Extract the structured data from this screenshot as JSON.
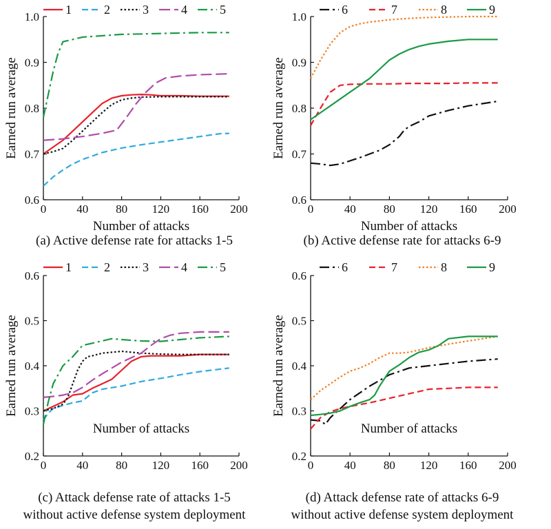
{
  "chart_data": [
    {
      "type": "line",
      "panel": "a",
      "caption": [
        "(a) Active defense rate for attacks 1-5"
      ],
      "xlabel": "Number of attacks",
      "ylabel": "Earned run average",
      "xlim": [
        0,
        200
      ],
      "ylim": [
        0.6,
        1.0
      ],
      "xticks": [
        0,
        40,
        80,
        120,
        160,
        200
      ],
      "yticks": [
        0.6,
        0.7,
        0.8,
        0.9,
        1.0
      ],
      "ytick_labels": [
        "0.6",
        "0.7",
        "0.8",
        "0.9",
        "1.0"
      ],
      "legend_position": "top",
      "series": [
        {
          "name": "1",
          "color": "#e8202a",
          "dash": "solid",
          "x": [
            0,
            10,
            20,
            30,
            40,
            50,
            60,
            70,
            80,
            90,
            100,
            110,
            120,
            140,
            160,
            190
          ],
          "y": [
            0.7,
            0.715,
            0.73,
            0.75,
            0.77,
            0.79,
            0.81,
            0.822,
            0.827,
            0.829,
            0.83,
            0.829,
            0.827,
            0.827,
            0.826,
            0.826
          ]
        },
        {
          "name": "2",
          "color": "#2fa9e0",
          "dash": "dash",
          "x": [
            0,
            10,
            20,
            30,
            40,
            60,
            80,
            100,
            120,
            140,
            160,
            180,
            190
          ],
          "y": [
            0.63,
            0.65,
            0.665,
            0.678,
            0.688,
            0.703,
            0.713,
            0.72,
            0.726,
            0.732,
            0.738,
            0.744,
            0.745
          ]
        },
        {
          "name": "3",
          "color": "#111111",
          "dash": "dot",
          "x": [
            0,
            10,
            20,
            30,
            40,
            50,
            60,
            70,
            80,
            90,
            100,
            120,
            140,
            160,
            190
          ],
          "y": [
            0.7,
            0.705,
            0.712,
            0.73,
            0.75,
            0.77,
            0.79,
            0.808,
            0.818,
            0.822,
            0.824,
            0.825,
            0.825,
            0.825,
            0.825
          ]
        },
        {
          "name": "4",
          "color": "#b04ca8",
          "dash": "longdash",
          "x": [
            0,
            20,
            40,
            60,
            75,
            85,
            95,
            105,
            115,
            125,
            140,
            160,
            190
          ],
          "y": [
            0.73,
            0.733,
            0.738,
            0.745,
            0.752,
            0.78,
            0.81,
            0.835,
            0.855,
            0.866,
            0.87,
            0.873,
            0.875
          ]
        },
        {
          "name": "5",
          "color": "#1a9a46",
          "dash": "dashdot",
          "x": [
            0,
            5,
            10,
            15,
            20,
            30,
            40,
            60,
            80,
            100,
            120,
            140,
            160,
            190
          ],
          "y": [
            0.78,
            0.83,
            0.88,
            0.92,
            0.945,
            0.95,
            0.955,
            0.958,
            0.961,
            0.962,
            0.963,
            0.964,
            0.965,
            0.965
          ]
        }
      ]
    },
    {
      "type": "line",
      "panel": "b",
      "caption": [
        "(b) Active defense rate for attacks 6-9"
      ],
      "xlabel": "Number of attacks",
      "ylabel": "Earned run average",
      "xlim": [
        0,
        200
      ],
      "ylim": [
        0.6,
        1.0
      ],
      "xticks": [
        0,
        40,
        80,
        120,
        160,
        200
      ],
      "yticks": [
        0.6,
        0.7,
        0.8,
        0.9,
        1.0
      ],
      "ytick_labels": [
        "0.6",
        "0.7",
        "0.8",
        "0.9",
        "1.0"
      ],
      "legend_position": "top",
      "series": [
        {
          "name": "6",
          "color": "#111111",
          "dash": "dashdot",
          "x": [
            0,
            10,
            20,
            30,
            40,
            50,
            60,
            70,
            80,
            90,
            95,
            100,
            110,
            120,
            140,
            160,
            190
          ],
          "y": [
            0.68,
            0.678,
            0.675,
            0.678,
            0.685,
            0.692,
            0.7,
            0.708,
            0.72,
            0.738,
            0.752,
            0.76,
            0.77,
            0.783,
            0.795,
            0.805,
            0.815
          ]
        },
        {
          "name": "7",
          "color": "#e8202a",
          "dash": "dash",
          "x": [
            0,
            10,
            20,
            30,
            40,
            60,
            80,
            100,
            120,
            140,
            160,
            190
          ],
          "y": [
            0.762,
            0.8,
            0.835,
            0.85,
            0.852,
            0.853,
            0.853,
            0.854,
            0.854,
            0.854,
            0.855,
            0.855
          ]
        },
        {
          "name": "8",
          "color": "#f07f1e",
          "dash": "dot",
          "x": [
            0,
            10,
            20,
            30,
            40,
            50,
            60,
            80,
            100,
            120,
            140,
            160,
            190
          ],
          "y": [
            0.865,
            0.905,
            0.94,
            0.965,
            0.978,
            0.984,
            0.988,
            0.993,
            0.996,
            0.998,
            0.999,
            1.0,
            1.0
          ]
        },
        {
          "name": "9",
          "color": "#1a9a46",
          "dash": "solid",
          "x": [
            0,
            10,
            20,
            30,
            40,
            50,
            60,
            70,
            80,
            90,
            100,
            110,
            120,
            130,
            140,
            160,
            190
          ],
          "y": [
            0.775,
            0.79,
            0.805,
            0.82,
            0.835,
            0.85,
            0.865,
            0.885,
            0.905,
            0.918,
            0.928,
            0.935,
            0.94,
            0.943,
            0.946,
            0.95,
            0.95
          ]
        }
      ]
    },
    {
      "type": "line",
      "panel": "c",
      "caption": [
        "(c) Attack defense rate of attacks 1-5",
        "without active defense system deployment"
      ],
      "xlabel": "Number of attacks",
      "ylabel": "Earned run average",
      "xlim": [
        0,
        200
      ],
      "ylim": [
        0.2,
        0.6
      ],
      "xticks": [
        0,
        40,
        80,
        120,
        160,
        200
      ],
      "yticks": [
        0.2,
        0.3,
        0.4,
        0.5,
        0.6
      ],
      "ytick_labels": [
        "0.2",
        "0.3",
        "0.4",
        "0.5",
        "0.6"
      ],
      "legend_position": "top",
      "series": [
        {
          "name": "1",
          "color": "#e8202a",
          "dash": "solid",
          "x": [
            0,
            10,
            20,
            30,
            40,
            50,
            60,
            70,
            80,
            90,
            100,
            110,
            120,
            140,
            160,
            190
          ],
          "y": [
            0.3,
            0.31,
            0.32,
            0.335,
            0.338,
            0.35,
            0.36,
            0.37,
            0.39,
            0.41,
            0.42,
            0.422,
            0.422,
            0.422,
            0.425,
            0.425
          ]
        },
        {
          "name": "2",
          "color": "#2fa9e0",
          "dash": "dash",
          "x": [
            0,
            5,
            10,
            20,
            30,
            40,
            50,
            60,
            80,
            100,
            120,
            140,
            160,
            190
          ],
          "y": [
            0.28,
            0.295,
            0.305,
            0.312,
            0.318,
            0.322,
            0.34,
            0.348,
            0.355,
            0.365,
            0.372,
            0.38,
            0.387,
            0.395
          ]
        },
        {
          "name": "3",
          "color": "#111111",
          "dash": "dot",
          "x": [
            0,
            10,
            20,
            25,
            30,
            35,
            40,
            45,
            50,
            60,
            70,
            80,
            90,
            100,
            120,
            140,
            160,
            190
          ],
          "y": [
            0.3,
            0.305,
            0.315,
            0.33,
            0.36,
            0.39,
            0.41,
            0.42,
            0.422,
            0.428,
            0.43,
            0.432,
            0.43,
            0.428,
            0.426,
            0.425,
            0.425,
            0.425
          ]
        },
        {
          "name": "4",
          "color": "#b04ca8",
          "dash": "longdash",
          "x": [
            0,
            10,
            20,
            30,
            40,
            50,
            60,
            70,
            80,
            90,
            100,
            110,
            120,
            130,
            140,
            160,
            190
          ],
          "y": [
            0.33,
            0.332,
            0.335,
            0.34,
            0.352,
            0.368,
            0.382,
            0.395,
            0.408,
            0.418,
            0.428,
            0.445,
            0.46,
            0.468,
            0.472,
            0.475,
            0.475
          ]
        },
        {
          "name": "5",
          "color": "#1a9a46",
          "dash": "dashdot",
          "x": [
            0,
            5,
            10,
            20,
            30,
            40,
            50,
            60,
            70,
            80,
            100,
            120,
            140,
            160,
            190
          ],
          "y": [
            0.27,
            0.32,
            0.36,
            0.4,
            0.42,
            0.445,
            0.45,
            0.455,
            0.46,
            0.458,
            0.455,
            0.454,
            0.458,
            0.462,
            0.465
          ]
        }
      ]
    },
    {
      "type": "line",
      "panel": "d",
      "caption": [
        "(d) Attack defense rate of attacks 6-9",
        "without active defense system deployment"
      ],
      "xlabel": "Number of attacks",
      "ylabel": "Earned run average",
      "xlim": [
        0,
        200
      ],
      "ylim": [
        0.2,
        0.6
      ],
      "xticks": [
        0,
        40,
        80,
        120,
        160,
        200
      ],
      "yticks": [
        0.2,
        0.3,
        0.4,
        0.5,
        0.6
      ],
      "ytick_labels": [
        "0.2",
        "0.3",
        "0.4",
        "0.5",
        "0.6"
      ],
      "legend_position": "top",
      "series": [
        {
          "name": "6",
          "color": "#111111",
          "dash": "dashdot",
          "x": [
            0,
            10,
            15,
            20,
            30,
            40,
            60,
            80,
            100,
            120,
            140,
            160,
            190
          ],
          "y": [
            0.28,
            0.278,
            0.27,
            0.285,
            0.305,
            0.325,
            0.355,
            0.38,
            0.395,
            0.4,
            0.405,
            0.41,
            0.415
          ]
        },
        {
          "name": "7",
          "color": "#e8202a",
          "dash": "dash",
          "x": [
            0,
            10,
            20,
            30,
            40,
            60,
            80,
            100,
            120,
            140,
            160,
            190
          ],
          "y": [
            0.26,
            0.285,
            0.298,
            0.305,
            0.31,
            0.318,
            0.328,
            0.338,
            0.348,
            0.35,
            0.352,
            0.352
          ]
        },
        {
          "name": "8",
          "color": "#f07f1e",
          "dash": "dot",
          "x": [
            0,
            10,
            20,
            30,
            40,
            50,
            60,
            70,
            80,
            90,
            100,
            120,
            140,
            160,
            190
          ],
          "y": [
            0.325,
            0.345,
            0.36,
            0.375,
            0.388,
            0.395,
            0.405,
            0.418,
            0.428,
            0.428,
            0.43,
            0.44,
            0.448,
            0.455,
            0.465
          ]
        },
        {
          "name": "9",
          "color": "#1a9a46",
          "dash": "solid",
          "x": [
            0,
            10,
            20,
            30,
            40,
            50,
            60,
            65,
            70,
            80,
            90,
            100,
            110,
            120,
            130,
            140,
            160,
            190
          ],
          "y": [
            0.29,
            0.292,
            0.295,
            0.3,
            0.31,
            0.318,
            0.325,
            0.335,
            0.355,
            0.388,
            0.402,
            0.418,
            0.43,
            0.435,
            0.445,
            0.46,
            0.465,
            0.465
          ]
        }
      ]
    }
  ]
}
